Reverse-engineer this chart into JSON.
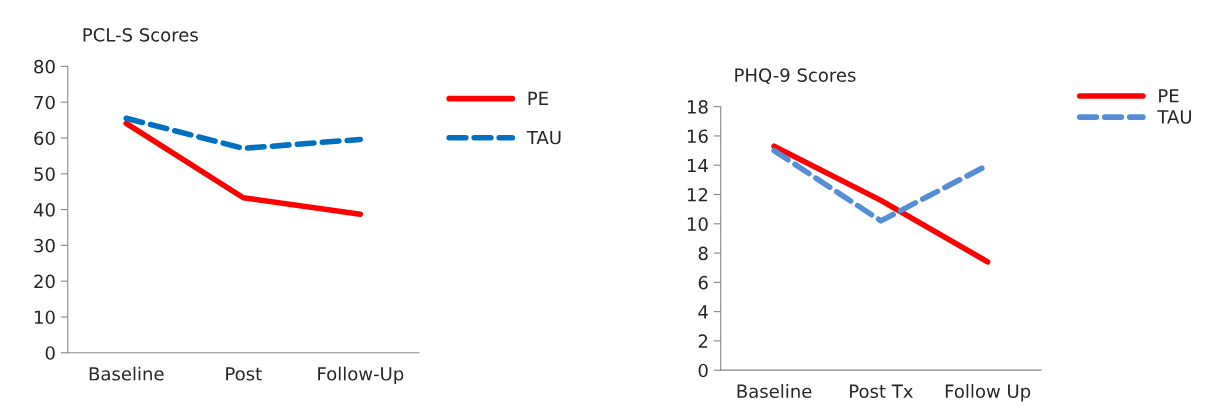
{
  "chart_data": [
    {
      "type": "line",
      "title": "PCL-S Scores",
      "categories": [
        "Baseline",
        "Post",
        "Follow-Up"
      ],
      "ylim": [
        0,
        80
      ],
      "yticks": [
        0,
        10,
        20,
        30,
        40,
        50,
        60,
        70,
        80
      ],
      "legend": "right",
      "grid": false,
      "series": [
        {
          "name": "PE",
          "color": "#ff0000",
          "line_style": "solid",
          "values": [
            64.1,
            43.3,
            38.7
          ]
        },
        {
          "name": "TAU",
          "color": "#0070c0",
          "line_style": "dashed",
          "values": [
            65.5,
            57.1,
            59.6
          ]
        }
      ]
    },
    {
      "type": "line",
      "title": "PHQ-9 Scores",
      "categories": [
        "Baseline",
        "Post Tx",
        "Follow Up"
      ],
      "ylim": [
        0,
        18
      ],
      "yticks": [
        0,
        2,
        4,
        6,
        8,
        10,
        12,
        14,
        16,
        18
      ],
      "legend": "right",
      "grid": false,
      "series": [
        {
          "name": "PE",
          "color": "#ff0000",
          "line_style": "solid",
          "values": [
            15.3,
            11.6,
            7.4
          ]
        },
        {
          "name": "TAU",
          "color": "#558ed5",
          "line_style": "dashed",
          "values": [
            15.0,
            10.2,
            14.0
          ]
        }
      ]
    }
  ]
}
